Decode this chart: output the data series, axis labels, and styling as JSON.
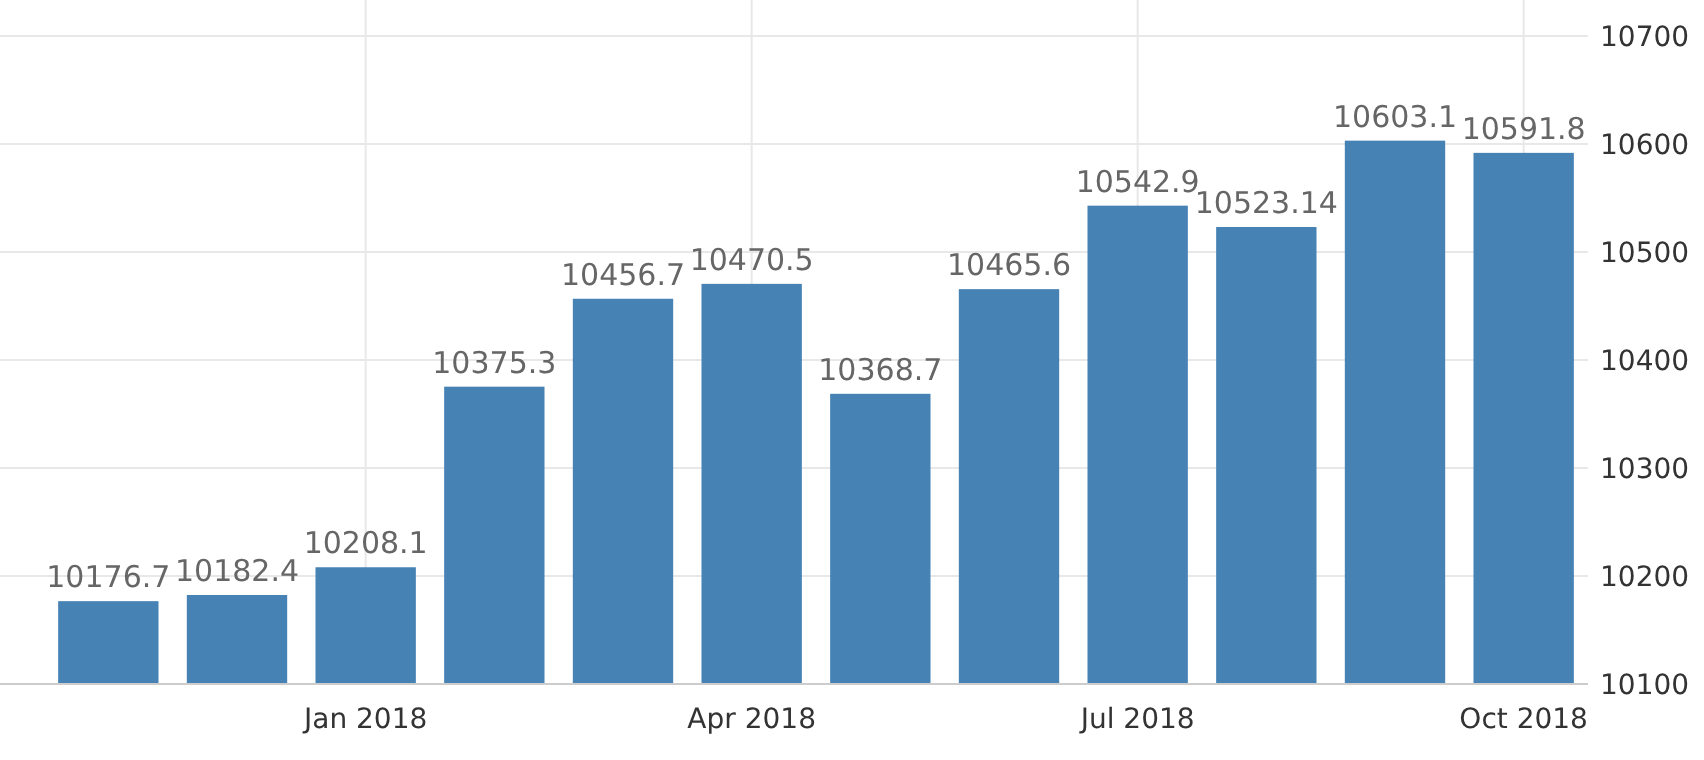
{
  "chart_data": {
    "type": "bar",
    "categories": [
      null,
      null,
      "Jan 2018",
      null,
      null,
      "Apr 2018",
      null,
      null,
      "Jul 2018",
      null,
      null,
      "Oct 2018"
    ],
    "values": [
      10176.7,
      10182.4,
      10208.1,
      10375.3,
      10456.7,
      10470.5,
      10368.7,
      10465.6,
      10542.9,
      10523.14,
      10603.1,
      10591.8
    ],
    "color": "#4682b4",
    "ylim": [
      10100,
      10700
    ],
    "yticks": [
      10100,
      10200,
      10300,
      10400,
      10500,
      10600,
      10700
    ],
    "grid": true,
    "data_labels": true
  }
}
